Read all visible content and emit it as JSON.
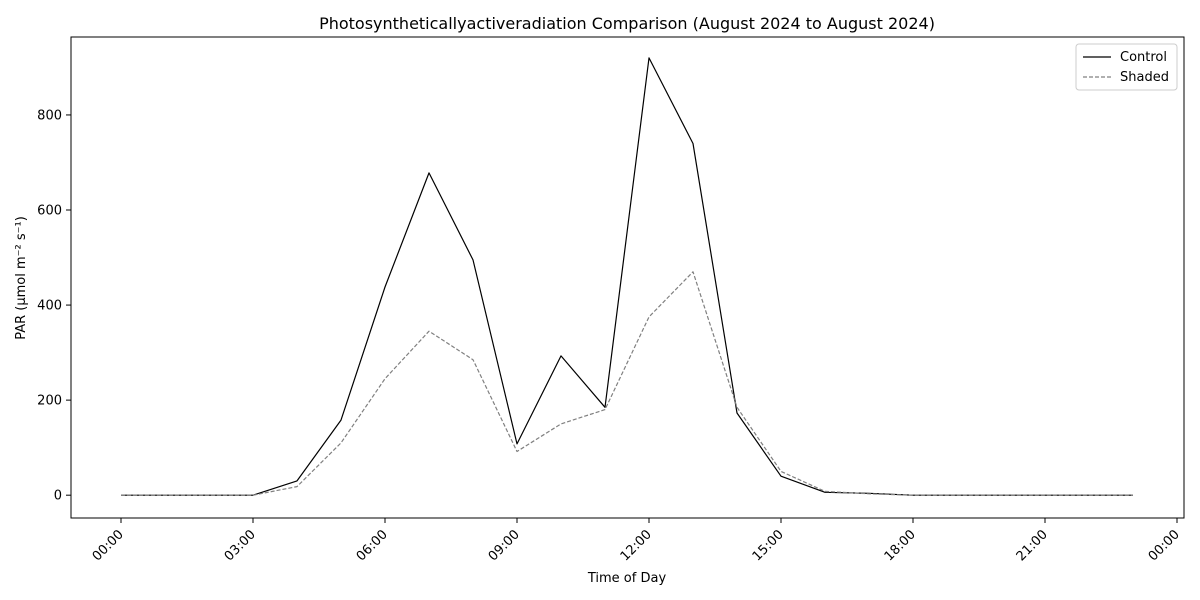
{
  "chart_data": {
    "type": "line",
    "title": "Photosyntheticallyactiveradiation Comparison (August 2024 to August 2024)",
    "xlabel": "Time of Day",
    "ylabel": "PAR (µmol m⁻² s⁻¹)",
    "x": [
      "00:00",
      "01:00",
      "02:00",
      "03:00",
      "04:00",
      "05:00",
      "06:00",
      "07:00",
      "08:00",
      "09:00",
      "10:00",
      "11:00",
      "12:00",
      "13:00",
      "14:00",
      "15:00",
      "16:00",
      "17:00",
      "18:00",
      "19:00",
      "20:00",
      "21:00",
      "22:00",
      "23:00"
    ],
    "x_ticks": [
      "00:00",
      "03:00",
      "06:00",
      "09:00",
      "12:00",
      "15:00",
      "18:00",
      "21:00",
      "00:00"
    ],
    "y_ticks": [
      0,
      200,
      400,
      600,
      800
    ],
    "ylim": [
      -48,
      964
    ],
    "grid": false,
    "legend_position": "top-right",
    "series": [
      {
        "name": "Control",
        "color": "#000000",
        "dash": "solid",
        "values": [
          0,
          0,
          0,
          0,
          30,
          158,
          438,
          678,
          495,
          108,
          293,
          185,
          920,
          740,
          173,
          40,
          6,
          4,
          0,
          0,
          0,
          0,
          0,
          0
        ]
      },
      {
        "name": "Shaded",
        "color": "#808080",
        "dash": "dashed",
        "values": [
          0,
          0,
          0,
          0,
          18,
          110,
          245,
          345,
          285,
          92,
          150,
          180,
          375,
          470,
          185,
          50,
          8,
          3,
          0,
          0,
          0,
          0,
          0,
          0
        ]
      }
    ]
  }
}
